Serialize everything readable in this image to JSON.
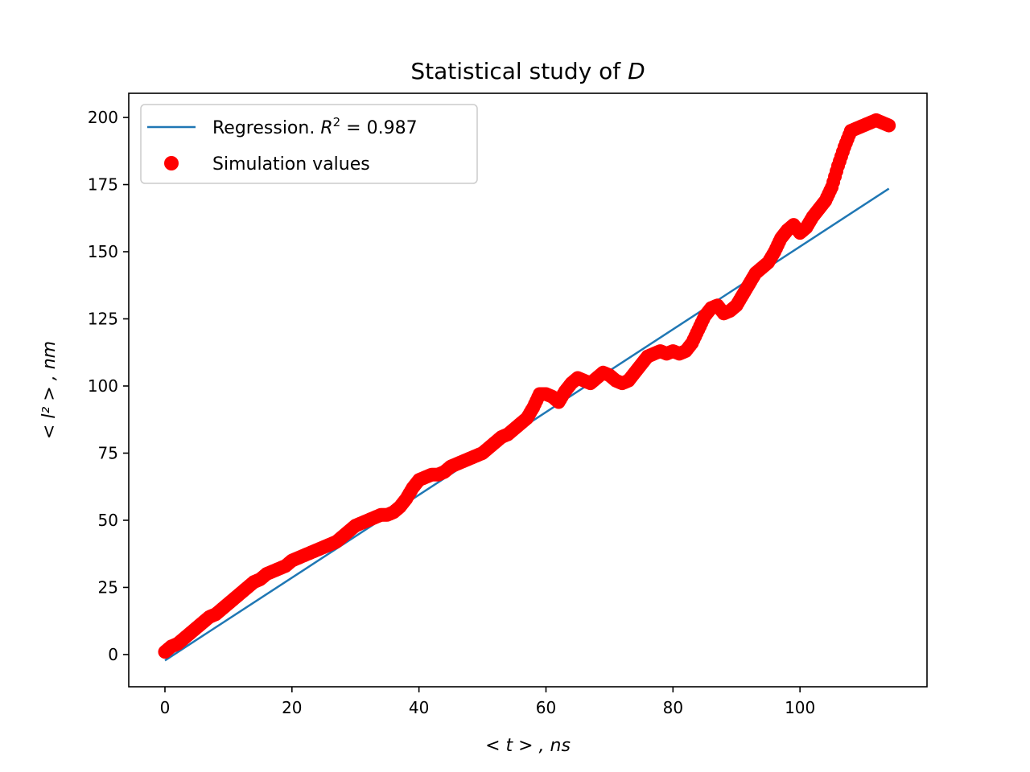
{
  "chart_data": {
    "type": "scatter",
    "title": "Statistical study of D",
    "title_parts": {
      "prefix": "Statistical study of ",
      "var": "D"
    },
    "xlabel": "< t > , ns",
    "ylabel": "< l² > , nm",
    "xlim": [
      -5.7,
      120
    ],
    "ylim": [
      -12,
      209
    ],
    "xticks": [
      0,
      20,
      40,
      60,
      80,
      100
    ],
    "yticks": [
      0,
      25,
      50,
      75,
      100,
      125,
      150,
      175,
      200
    ],
    "grid": false,
    "legend_position": "upper-left",
    "colors": {
      "regression": "#1f77b4",
      "simulation": "#ff0000"
    },
    "series": [
      {
        "name": "Regression. R² = 0.987",
        "kind": "line",
        "x": [
          0,
          114
        ],
        "y": [
          -2.2,
          173.5
        ]
      },
      {
        "name": "Simulation values",
        "kind": "points",
        "x": [
          0,
          1,
          2,
          3,
          4,
          5,
          6,
          7,
          8,
          9,
          10,
          11,
          12,
          13,
          14,
          15,
          16,
          17,
          18,
          19,
          20,
          21,
          22,
          23,
          24,
          25,
          26,
          27,
          28,
          29,
          30,
          31,
          32,
          33,
          34,
          35,
          36,
          37,
          38,
          39,
          40,
          41,
          42,
          43,
          44,
          45,
          46,
          47,
          48,
          49,
          50,
          51,
          52,
          53,
          54,
          55,
          56,
          57,
          58,
          59,
          60,
          61,
          62,
          63,
          64,
          65,
          66,
          67,
          68,
          69,
          70,
          71,
          72,
          73,
          74,
          75,
          76,
          77,
          78,
          79,
          80,
          81,
          82,
          83,
          84,
          85,
          86,
          87,
          88,
          89,
          90,
          91,
          92,
          93,
          94,
          95,
          96,
          97,
          98,
          99,
          100,
          101,
          102,
          103,
          104,
          105,
          106,
          107,
          108,
          109,
          110,
          111,
          112,
          113,
          114
        ],
        "y": [
          1,
          3,
          4,
          6,
          8,
          10,
          12,
          14,
          15,
          17,
          19,
          21,
          23,
          25,
          27,
          28,
          30,
          31,
          32,
          33,
          35,
          36,
          37,
          38,
          39,
          40,
          41,
          42,
          44,
          46,
          48,
          49,
          50,
          51,
          52,
          52,
          53,
          55,
          58,
          62,
          65,
          66,
          67,
          67,
          68,
          70,
          71,
          72,
          73,
          74,
          75,
          77,
          79,
          81,
          82,
          84,
          86,
          88,
          92,
          97,
          97,
          96,
          94,
          98,
          101,
          103,
          102,
          101,
          103,
          105,
          104,
          102,
          101,
          102,
          105,
          108,
          111,
          112,
          113,
          112,
          113,
          112,
          113,
          116,
          121,
          126,
          129,
          130,
          127,
          128,
          130,
          134,
          138,
          142,
          144,
          146,
          150,
          155,
          158,
          160,
          157,
          159,
          163,
          166,
          169,
          174,
          182,
          189,
          195,
          196,
          197,
          198,
          199,
          198,
          197
        ]
      }
    ],
    "legend_labels": {
      "regression_prefix": "Regression. ",
      "regression_var": "R",
      "regression_sup": "2",
      "regression_eq": " = 0.987",
      "simulation": "Simulation values"
    }
  }
}
